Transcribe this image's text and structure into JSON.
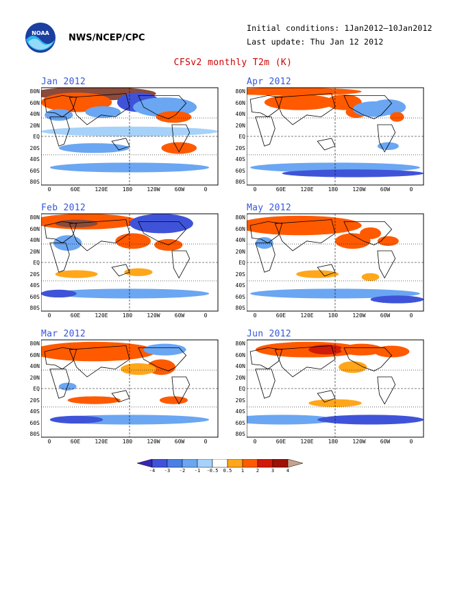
{
  "header": {
    "org": "NWS/NCEP/CPC",
    "initial_conditions": "Initial conditions: 1Jan2012—10Jan2012",
    "last_update": "Last update: Thu Jan 12 2012",
    "title": "CFSv2 monthly T2m (K)"
  },
  "logo_icon": "noaa-logo",
  "lat_labels": [
    "80N",
    "60N",
    "40N",
    "20N",
    "EQ",
    "20S",
    "40S",
    "60S",
    "80S"
  ],
  "lon_labels": [
    "0",
    "60E",
    "120E",
    "180",
    "120W",
    "60W",
    "0"
  ],
  "panels": [
    {
      "id": "jan",
      "title": "Jan 2012"
    },
    {
      "id": "apr",
      "title": "Apr 2012"
    },
    {
      "id": "feb",
      "title": "Feb 2012"
    },
    {
      "id": "may",
      "title": "May 2012"
    },
    {
      "id": "mar",
      "title": "Mar 2012"
    },
    {
      "id": "jun",
      "title": "Jun 2012"
    }
  ],
  "colorbar": {
    "labels": [
      "-4",
      "-3",
      "-2",
      "-1",
      "-0.5",
      "0.5",
      "1",
      "2",
      "3",
      "4"
    ],
    "colors": [
      "#3a24b5",
      "#3f53d9",
      "#4b7fe6",
      "#6aa6f2",
      "#a6d2fa",
      "#ffffff",
      "#ffa61a",
      "#ff5a00",
      "#d01a0a",
      "#9c1006",
      "#c9a18a"
    ]
  },
  "anomaly_colors": {
    "warm_light": "#ffa61a",
    "warm": "#ff5a00",
    "warm_strong": "#d01a0a",
    "warm_extreme": "#8b4a3a",
    "cool_light": "#a6d2fa",
    "cool": "#6aa6f2",
    "cool_mid": "#4b7fe6",
    "cool_strong": "#3f53d9",
    "cool_extreme": "#3a24b5"
  }
}
